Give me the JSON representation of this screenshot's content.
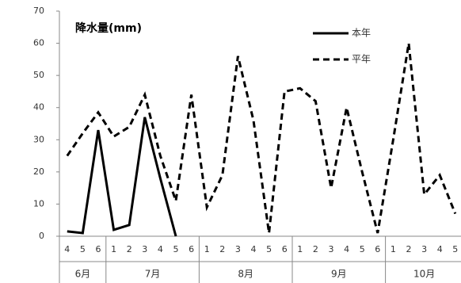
{
  "chart_data": {
    "type": "line",
    "title": "降水量(mm)",
    "groups": [
      {
        "label": "6月",
        "categories": [
          "4",
          "5",
          "6"
        ]
      },
      {
        "label": "7月",
        "categories": [
          "1",
          "2",
          "3",
          "4",
          "5",
          "6"
        ]
      },
      {
        "label": "8月",
        "categories": [
          "1",
          "2",
          "3",
          "4",
          "5",
          "6"
        ]
      },
      {
        "label": "9月",
        "categories": [
          "1",
          "2",
          "3",
          "4",
          "5",
          "6"
        ]
      },
      {
        "label": "10月",
        "categories": [
          "1",
          "2",
          "3",
          "4",
          "5"
        ]
      }
    ],
    "series": [
      {
        "name": "本年",
        "color": "#000000",
        "dash": false,
        "values": [
          1.5,
          1,
          33,
          2,
          3.5,
          37,
          18,
          0,
          null,
          null,
          null,
          null,
          null,
          null,
          null,
          null,
          null,
          null,
          null,
          null,
          null,
          null,
          null,
          null,
          null,
          null
        ]
      },
      {
        "name": "平年",
        "color": "#000000",
        "dash": true,
        "values": [
          25,
          32,
          38.5,
          31,
          34,
          44,
          25,
          11,
          44,
          9,
          19,
          56,
          36,
          1,
          45,
          46,
          42,
          15,
          40,
          20,
          1,
          30,
          60,
          13,
          19,
          7
        ]
      }
    ],
    "ylim": [
      0,
      70
    ],
    "yticks": [
      0,
      10,
      20,
      30,
      40,
      50,
      60,
      70
    ],
    "grid": false
  }
}
